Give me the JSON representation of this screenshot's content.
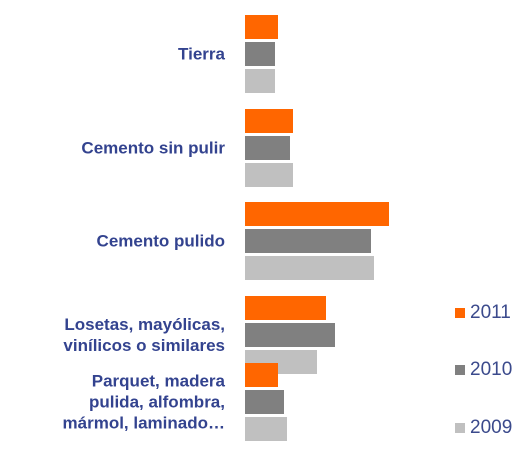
{
  "chart_data": {
    "type": "bar",
    "orientation": "horizontal",
    "categories": [
      "Tierra",
      "Cemento sin pulir",
      "Cemento pulido",
      "Losetas, mayólicas,\nvinílicos o similares",
      "Parquet, madera\npulida, alfombra,\nmármol, laminado…"
    ],
    "series": [
      {
        "name": "2011",
        "color": "#ff6600",
        "values": [
          11,
          16,
          48,
          27,
          11
        ]
      },
      {
        "name": "2010",
        "color": "#808080",
        "values": [
          10,
          15,
          42,
          30,
          13
        ]
      },
      {
        "name": "2009",
        "color": "#c0c0c0",
        "values": [
          10,
          16,
          43,
          24,
          14
        ]
      }
    ]
  }
}
